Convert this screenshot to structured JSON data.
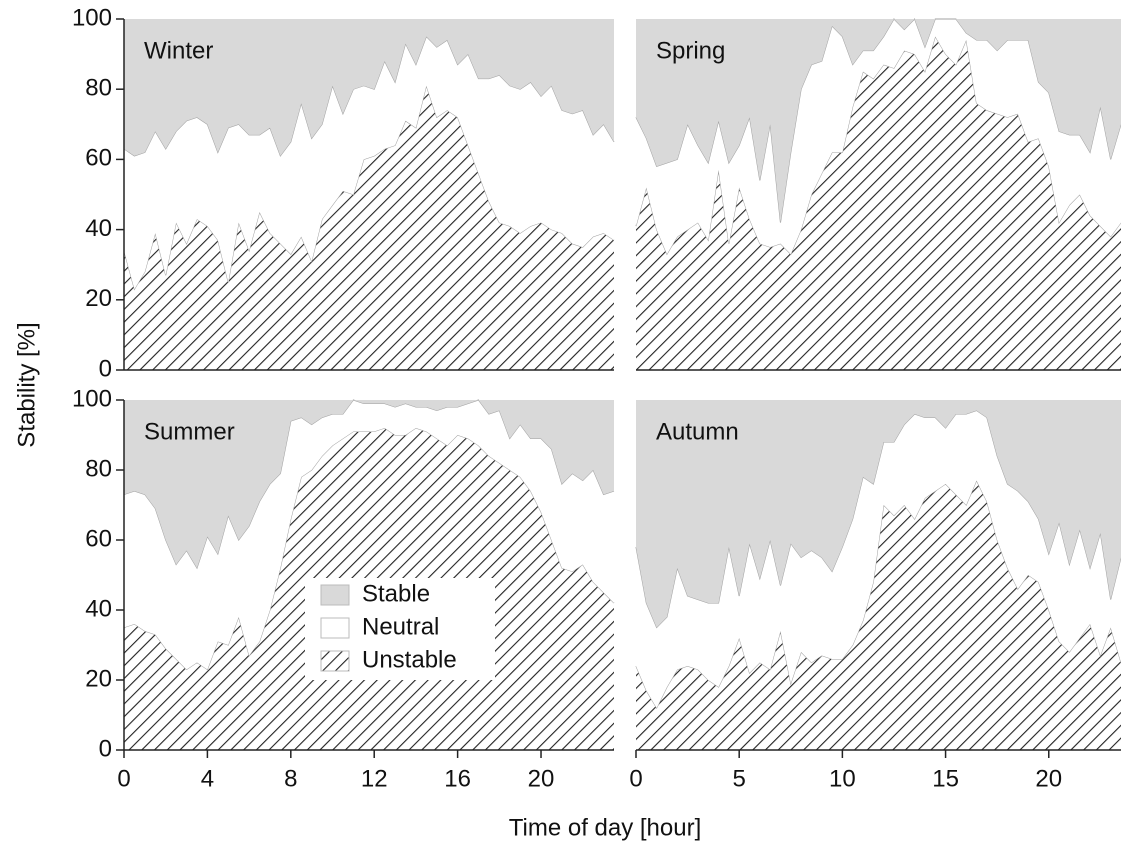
{
  "chart_data": [
    {
      "type": "area",
      "title": "Winter",
      "ylabel": "Stability [%]",
      "x": [
        0,
        0.5,
        1,
        1.5,
        2,
        2.5,
        3,
        3.5,
        4,
        4.5,
        5,
        5.5,
        6,
        6.5,
        7,
        7.5,
        8,
        8.5,
        9,
        9.5,
        10,
        10.5,
        11,
        11.5,
        12,
        12.5,
        13,
        13.5,
        14,
        14.5,
        15,
        15.5,
        16,
        16.5,
        17,
        17.5,
        18,
        18.5,
        19,
        19.5,
        20,
        20.5,
        21,
        21.5,
        22,
        22.5,
        23,
        23.5
      ],
      "xlim": [
        0,
        23.5
      ],
      "ylim": [
        0,
        100
      ],
      "yticks": [
        0,
        20,
        40,
        60,
        80,
        100
      ],
      "series": [
        {
          "name": "Unstable",
          "color": "#222222",
          "hatch": true,
          "values": [
            34,
            23,
            28,
            39,
            27,
            42,
            36,
            43,
            41,
            37,
            25,
            42,
            34,
            45,
            39,
            36,
            33,
            38,
            31,
            43,
            47,
            51,
            50,
            60,
            61,
            63,
            64,
            71,
            69,
            81,
            72,
            74,
            72,
            64,
            56,
            48,
            42,
            41,
            39,
            41,
            42,
            40,
            39,
            36,
            35,
            38,
            39,
            37
          ]
        },
        {
          "name": "Neutral",
          "color": "#ffffff",
          "values": [
            29,
            38,
            34,
            29,
            36,
            26,
            35,
            29,
            29,
            25,
            44,
            28,
            33,
            22,
            30,
            25,
            32,
            38,
            35,
            27,
            34,
            22,
            30,
            21,
            19,
            25,
            18,
            22,
            18,
            14,
            20,
            20,
            15,
            26,
            27,
            35,
            42,
            40,
            41,
            41,
            36,
            41,
            35,
            37,
            39,
            29,
            31,
            28
          ]
        },
        {
          "name": "Stable",
          "color": "#d9d9d9",
          "values": [
            37,
            39,
            38,
            32,
            37,
            32,
            29,
            28,
            30,
            38,
            31,
            30,
            33,
            33,
            31,
            39,
            35,
            24,
            34,
            30,
            19,
            27,
            20,
            19,
            20,
            12,
            18,
            7,
            13,
            5,
            8,
            6,
            13,
            10,
            17,
            17,
            16,
            19,
            20,
            18,
            22,
            19,
            26,
            27,
            26,
            33,
            30,
            35
          ]
        }
      ]
    },
    {
      "type": "area",
      "title": "Spring",
      "x": [
        0,
        0.5,
        1,
        1.5,
        2,
        2.5,
        3,
        3.5,
        4,
        4.5,
        5,
        5.5,
        6,
        6.5,
        7,
        7.5,
        8,
        8.5,
        9,
        9.5,
        10,
        10.5,
        11,
        11.5,
        12,
        12.5,
        13,
        13.5,
        14,
        14.5,
        15,
        15.5,
        16,
        16.5,
        17,
        17.5,
        18,
        18.5,
        19,
        19.5,
        20,
        20.5,
        21,
        21.5,
        22,
        22.5,
        23,
        23.5
      ],
      "xlim": [
        0,
        23.5
      ],
      "ylim": [
        0,
        100
      ],
      "series": [
        {
          "name": "Unstable",
          "color": "#222222",
          "hatch": true,
          "values": [
            41,
            52,
            40,
            33,
            38,
            40,
            42,
            37,
            57,
            36,
            52,
            43,
            36,
            35,
            36,
            33,
            40,
            50,
            56,
            62,
            62,
            75,
            85,
            83,
            87,
            86,
            91,
            90,
            85,
            95,
            90,
            87,
            94,
            76,
            74,
            73,
            72,
            73,
            65,
            66,
            58,
            42,
            47,
            50,
            44,
            41,
            38,
            42
          ]
        },
        {
          "name": "Neutral",
          "color": "#ffffff",
          "values": [
            31,
            14,
            18,
            26,
            22,
            30,
            22,
            22,
            14,
            23,
            12,
            29,
            18,
            35,
            6,
            29,
            40,
            37,
            32,
            36,
            33,
            12,
            6,
            8,
            8,
            14,
            6,
            10,
            7,
            5,
            10,
            13,
            2,
            18,
            20,
            18,
            22,
            21,
            29,
            16,
            21,
            26,
            20,
            17,
            18,
            34,
            22,
            28
          ]
        },
        {
          "name": "Stable",
          "color": "#d9d9d9",
          "values": [
            28,
            34,
            42,
            41,
            40,
            30,
            36,
            41,
            29,
            41,
            36,
            28,
            46,
            30,
            58,
            38,
            20,
            13,
            12,
            2,
            5,
            13,
            9,
            9,
            5,
            0,
            3,
            0,
            8,
            0,
            0,
            0,
            4,
            6,
            6,
            9,
            6,
            6,
            6,
            18,
            21,
            32,
            33,
            33,
            38,
            25,
            40,
            30
          ]
        }
      ]
    },
    {
      "type": "area",
      "title": "Summer",
      "xlabel": "Time of day [hour]",
      "legend": "lower left",
      "x": [
        0,
        0.5,
        1,
        1.5,
        2,
        2.5,
        3,
        3.5,
        4,
        4.5,
        5,
        5.5,
        6,
        6.5,
        7,
        7.5,
        8,
        8.5,
        9,
        9.5,
        10,
        10.5,
        11,
        11.5,
        12,
        12.5,
        13,
        13.5,
        14,
        14.5,
        15,
        15.5,
        16,
        16.5,
        17,
        17.5,
        18,
        18.5,
        19,
        19.5,
        20,
        20.5,
        21,
        21.5,
        22,
        22.5,
        23,
        23.5
      ],
      "xlim": [
        0,
        23.5
      ],
      "xticks": [
        0,
        4,
        8,
        12,
        16,
        20
      ],
      "ylim": [
        0,
        100
      ],
      "yticks": [
        0,
        20,
        40,
        60,
        80,
        100
      ],
      "series": [
        {
          "name": "Unstable",
          "color": "#222222",
          "hatch": true,
          "values": [
            35,
            36,
            34,
            33,
            29,
            26,
            23,
            25,
            23,
            31,
            30,
            38,
            27,
            31,
            40,
            52,
            66,
            78,
            80,
            84,
            87,
            89,
            91,
            91,
            91,
            92,
            90,
            90,
            92,
            91,
            89,
            87,
            90,
            89,
            87,
            84,
            82,
            80,
            78,
            74,
            68,
            60,
            52,
            51,
            53,
            48,
            45,
            42
          ]
        },
        {
          "name": "Neutral",
          "color": "#ffffff",
          "values": [
            38,
            38,
            39,
            36,
            31,
            27,
            34,
            27,
            38,
            25,
            37,
            22,
            37,
            40,
            36,
            27,
            28,
            17,
            13,
            11,
            9,
            7,
            9,
            8,
            8,
            7,
            8,
            9,
            6,
            7,
            8,
            11,
            8,
            10,
            13,
            12,
            15,
            9,
            15,
            15,
            21,
            26,
            24,
            28,
            24,
            32,
            28,
            32
          ]
        },
        {
          "name": "Stable",
          "color": "#d9d9d9",
          "values": [
            27,
            26,
            27,
            31,
            40,
            47,
            43,
            48,
            39,
            44,
            33,
            40,
            36,
            29,
            24,
            21,
            6,
            5,
            7,
            5,
            4,
            4,
            0,
            1,
            1,
            1,
            2,
            1,
            2,
            2,
            3,
            2,
            2,
            1,
            0,
            4,
            3,
            11,
            7,
            11,
            11,
            14,
            24,
            21,
            23,
            20,
            27,
            26
          ]
        }
      ]
    },
    {
      "type": "area",
      "title": "Autumn",
      "x": [
        0,
        0.5,
        1,
        1.5,
        2,
        2.5,
        3,
        3.5,
        4,
        4.5,
        5,
        5.5,
        6,
        6.5,
        7,
        7.5,
        8,
        8.5,
        9,
        9.5,
        10,
        10.5,
        11,
        11.5,
        12,
        12.5,
        13,
        13.5,
        14,
        14.5,
        15,
        15.5,
        16,
        16.5,
        17,
        17.5,
        18,
        18.5,
        19,
        19.5,
        20,
        20.5,
        21,
        21.5,
        22,
        22.5,
        23,
        23.5
      ],
      "xlim": [
        0,
        23.5
      ],
      "xticks": [
        0,
        5,
        10,
        15,
        20
      ],
      "ylim": [
        0,
        100
      ],
      "series": [
        {
          "name": "Unstable",
          "color": "#222222",
          "hatch": true,
          "values": [
            24,
            17,
            12,
            18,
            23,
            24,
            23,
            20,
            18,
            24,
            32,
            22,
            25,
            23,
            34,
            19,
            28,
            25,
            27,
            26,
            26,
            30,
            37,
            48,
            70,
            67,
            70,
            66,
            72,
            74,
            76,
            73,
            70,
            77,
            71,
            60,
            52,
            46,
            50,
            48,
            40,
            31,
            28,
            32,
            36,
            27,
            35,
            25
          ]
        },
        {
          "name": "Neutral",
          "color": "#ffffff",
          "values": [
            34,
            25,
            23,
            20,
            29,
            20,
            20,
            22,
            24,
            34,
            12,
            37,
            24,
            37,
            13,
            40,
            27,
            32,
            28,
            25,
            32,
            36,
            41,
            28,
            18,
            21,
            23,
            30,
            23,
            21,
            16,
            23,
            26,
            20,
            24,
            24,
            24,
            28,
            21,
            18,
            16,
            34,
            25,
            31,
            16,
            35,
            8,
            30
          ]
        },
        {
          "name": "Stable",
          "color": "#d9d9d9",
          "values": [
            42,
            58,
            65,
            62,
            48,
            56,
            57,
            58,
            58,
            42,
            56,
            41,
            51,
            40,
            53,
            41,
            45,
            43,
            45,
            49,
            42,
            34,
            22,
            24,
            12,
            12,
            7,
            4,
            5,
            5,
            8,
            4,
            4,
            3,
            5,
            16,
            24,
            26,
            29,
            34,
            44,
            35,
            47,
            37,
            48,
            38,
            57,
            45
          ]
        }
      ]
    }
  ]
}
